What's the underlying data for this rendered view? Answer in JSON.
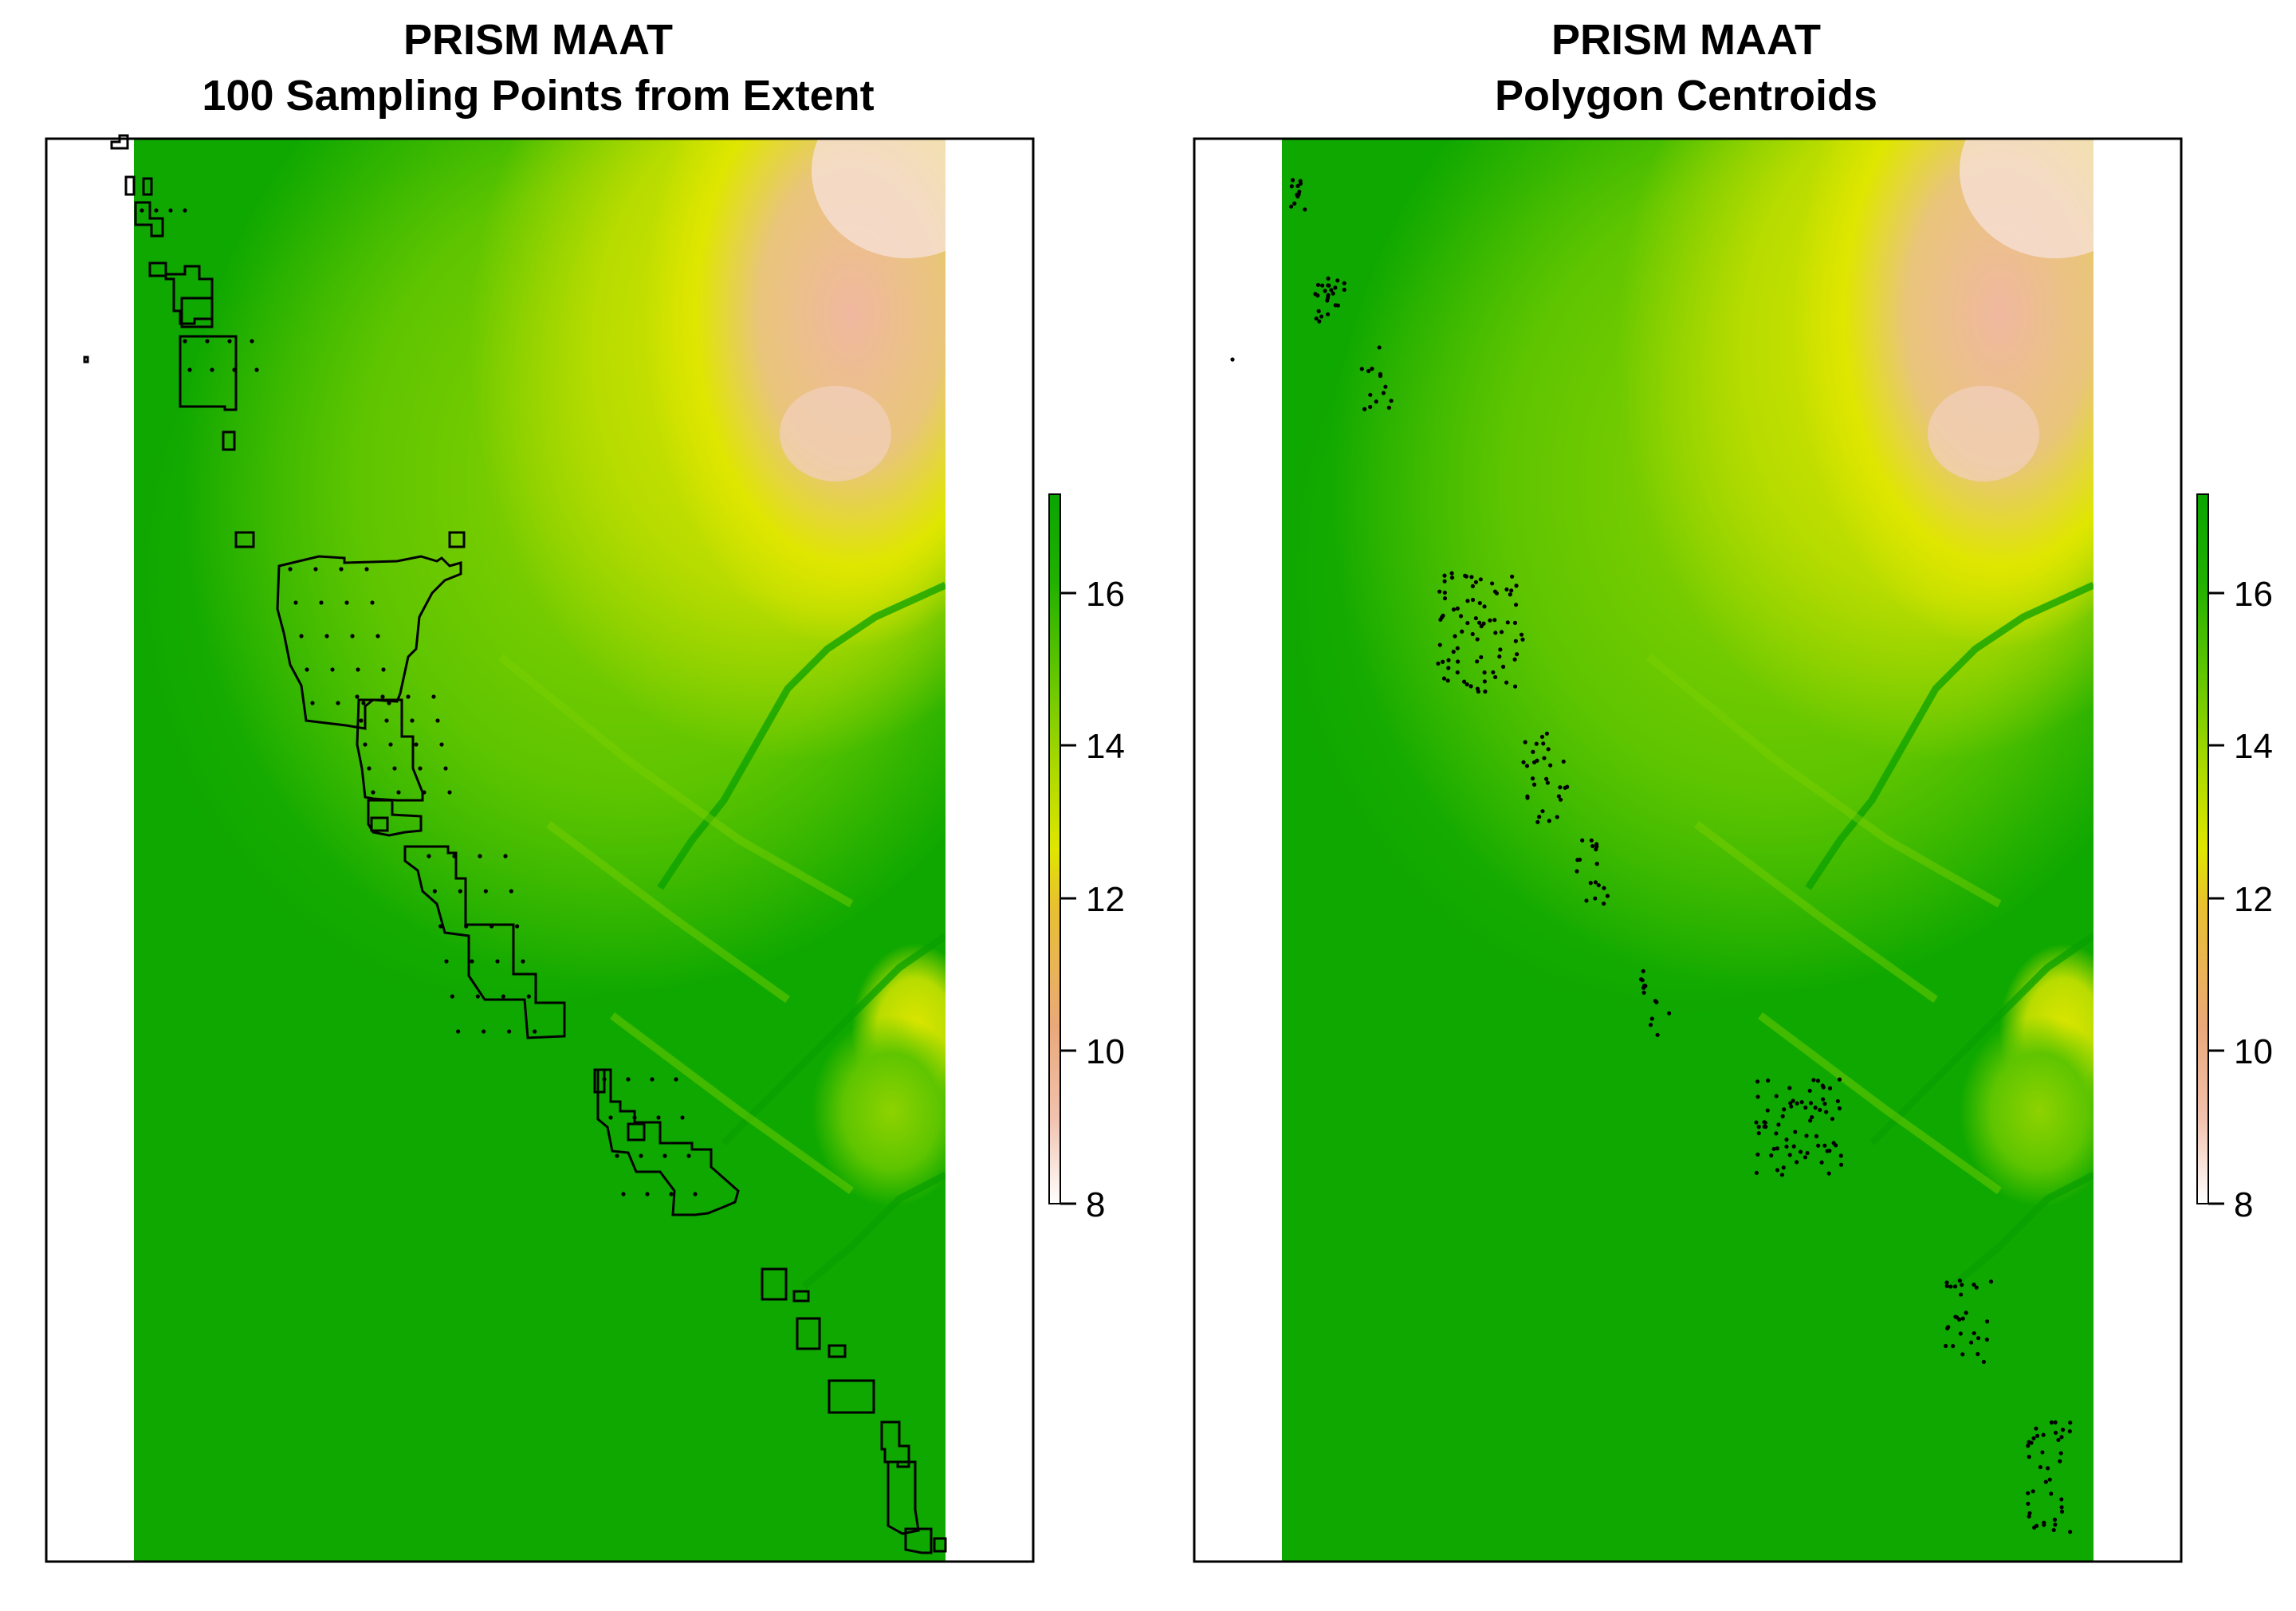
{
  "panels": [
    {
      "title_line1": "PRISM MAAT",
      "title_line2": "100 Sampling Points from Extent",
      "legend_ticks": [
        "16",
        "14",
        "12",
        "10",
        "8"
      ]
    },
    {
      "title_line1": "PRISM MAAT",
      "title_line2": "Polygon Centroids",
      "legend_ticks": [
        "16",
        "14",
        "12",
        "10",
        "8"
      ]
    }
  ],
  "chart_data": [
    {
      "type": "heatmap",
      "title": "PRISM MAAT\n100 Sampling Points from Extent",
      "variable": "PRISM MAAT",
      "overlay": "polygon outlines with regular grid of sampling points inside polygons",
      "sampling_points": 100,
      "colorbar": {
        "ticks": [
          8,
          10,
          12,
          14,
          16
        ],
        "range": [
          7.6,
          17.2
        ],
        "palette": [
          "#ffffff",
          "#f1c2ae",
          "#eaa87a",
          "#e8c030",
          "#dfe600",
          "#a8d800",
          "#5fc500",
          "#20b000",
          "#0aa500"
        ]
      },
      "grid": false,
      "legend_position": "right"
    },
    {
      "type": "heatmap",
      "title": "PRISM MAAT\nPolygon Centroids",
      "variable": "PRISM MAAT",
      "overlay": "polygon centroid points",
      "colorbar": {
        "ticks": [
          8,
          10,
          12,
          14,
          16
        ],
        "range": [
          7.6,
          17.2
        ],
        "palette": [
          "#ffffff",
          "#f1c2ae",
          "#eaa87a",
          "#e8c030",
          "#dfe600",
          "#a8d800",
          "#5fc500",
          "#20b000",
          "#0aa500"
        ]
      },
      "grid": false,
      "legend_position": "right"
    }
  ]
}
